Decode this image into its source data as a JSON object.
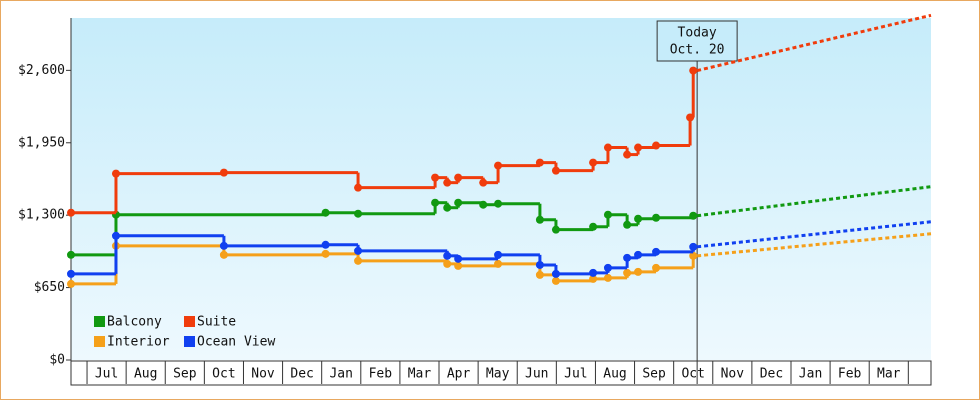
{
  "chart_data": {
    "type": "step-line",
    "xlim": [
      0.59,
      22.58
    ],
    "ylim": [
      0,
      3070
    ],
    "yticks": [
      {
        "value": 0,
        "label": "$0"
      },
      {
        "value": 650,
        "label": "$650"
      },
      {
        "value": 1300,
        "label": "$1,300"
      },
      {
        "value": 1950,
        "label": "$1,950"
      },
      {
        "value": 2600,
        "label": "$2,600"
      }
    ],
    "categories": [
      null,
      "Jul",
      "Aug",
      "Sep",
      "Oct",
      "Nov",
      "Dec",
      "Jan",
      "Feb",
      "Mar",
      "Apr",
      "May",
      "Jun",
      "Jul",
      "Aug",
      "Sep",
      "Oct",
      "Nov",
      "Dec",
      "Jan",
      "Feb",
      "Mar",
      null
    ],
    "annotation": {
      "x": 16.6,
      "lines": [
        "Today",
        "Oct. 20"
      ]
    },
    "series": [
      {
        "name": "Balcony",
        "color": "#119911",
        "x": [
          0.59,
          1.74,
          7.1,
          7.93,
          9.9,
          10.21,
          10.49,
          11.13,
          11.51,
          12.58,
          12.99,
          13.94,
          14.32,
          14.81,
          15.09,
          15.55,
          16.5
        ],
        "values": [
          944,
          1304,
          1322,
          1313,
          1412,
          1367,
          1412,
          1394,
          1403,
          1259,
          1170,
          1196,
          1304,
          1214,
          1268,
          1277,
          1295
        ],
        "forecast": {
          "x": [
            16.6,
            22.58
          ],
          "values": [
            1295,
            1556
          ]
        }
      },
      {
        "name": "Suite",
        "color": "#f03c0c",
        "x": [
          0.59,
          1.74,
          4.5,
          7.93,
          9.9,
          10.21,
          10.49,
          11.13,
          11.51,
          12.58,
          12.99,
          13.94,
          14.32,
          14.81,
          15.09,
          15.55,
          16.42,
          16.5
        ],
        "values": [
          1322,
          1673,
          1682,
          1547,
          1637,
          1592,
          1637,
          1592,
          1745,
          1772,
          1700,
          1772,
          1907,
          1844,
          1907,
          1925,
          2177,
          2598
        ],
        "forecast": {
          "x": [
            16.6,
            22.58
          ],
          "values": [
            2598,
            3094
          ]
        }
      },
      {
        "name": "Interior",
        "color": "#f5a01a",
        "x": [
          0.59,
          1.74,
          4.5,
          7.1,
          7.93,
          10.21,
          10.49,
          11.51,
          12.58,
          12.99,
          13.94,
          14.32,
          14.81,
          15.09,
          15.55,
          16.5
        ],
        "values": [
          683,
          1025,
          944,
          953,
          890,
          863,
          845,
          863,
          764,
          710,
          728,
          737,
          782,
          791,
          827,
          935
        ],
        "forecast": {
          "x": [
            16.6,
            22.58
          ],
          "values": [
            935,
            1133
          ]
        }
      },
      {
        "name": "Ocean View",
        "color": "#1040f0",
        "x": [
          0.59,
          1.74,
          4.5,
          7.1,
          7.93,
          10.21,
          10.49,
          11.51,
          12.58,
          12.99,
          13.94,
          14.32,
          14.81,
          15.09,
          15.55,
          16.5
        ],
        "values": [
          773,
          1115,
          1025,
          1034,
          980,
          935,
          908,
          944,
          853,
          773,
          782,
          827,
          917,
          944,
          971,
          1016
        ],
        "forecast": {
          "x": [
            16.6,
            22.58
          ],
          "values": [
            1016,
            1241
          ]
        }
      }
    ]
  }
}
